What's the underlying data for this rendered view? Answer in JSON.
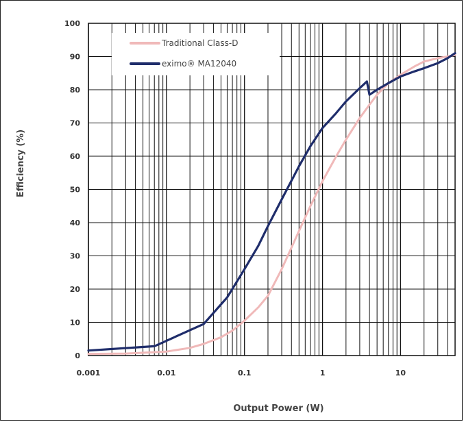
{
  "chart_data": {
    "type": "line",
    "xlabel": "Output Power (W)",
    "ylabel": "Efficiency (%)",
    "x_scale": "log",
    "xlim": [
      0.001,
      50
    ],
    "ylim": [
      0,
      100
    ],
    "x_ticks": [
      {
        "value": 0.001,
        "label": "0.001"
      },
      {
        "value": 0.01,
        "label": "0.01"
      },
      {
        "value": 0.1,
        "label": "0.1"
      },
      {
        "value": 1,
        "label": "1"
      },
      {
        "value": 10,
        "label": "10"
      }
    ],
    "y_ticks": [
      {
        "value": 0,
        "label": "0"
      },
      {
        "value": 10,
        "label": "10"
      },
      {
        "value": 20,
        "label": "20"
      },
      {
        "value": 30,
        "label": "30"
      },
      {
        "value": 40,
        "label": "40"
      },
      {
        "value": 50,
        "label": "50"
      },
      {
        "value": 60,
        "label": "60"
      },
      {
        "value": 70,
        "label": "70"
      },
      {
        "value": 80,
        "label": "80"
      },
      {
        "value": 90,
        "label": "90"
      },
      {
        "value": 100,
        "label": "100"
      }
    ],
    "grid": true,
    "legend_position": "top-left",
    "series": [
      {
        "name": "Traditional Class-D",
        "color": "#f0b9b9",
        "x": [
          0.001,
          0.003,
          0.01,
          0.02,
          0.03,
          0.05,
          0.07,
          0.1,
          0.15,
          0.2,
          0.3,
          0.5,
          0.7,
          1,
          1.5,
          2,
          3,
          4,
          5,
          7,
          10,
          15,
          20,
          30,
          40,
          50
        ],
        "y": [
          0.5,
          0.6,
          1.2,
          2.3,
          3.5,
          5.5,
          7.5,
          10.5,
          14.5,
          18,
          26,
          37.5,
          45,
          52.5,
          60,
          65,
          71.5,
          75.5,
          78.5,
          82,
          84.5,
          87,
          88.5,
          89.5,
          90,
          90.5
        ]
      },
      {
        "name": "eximo® MA12040",
        "color": "#1f2d6b",
        "x": [
          0.001,
          0.007,
          0.03,
          0.06,
          0.1,
          0.15,
          0.2,
          0.3,
          0.5,
          0.7,
          1,
          1.5,
          2,
          3,
          3.7,
          4.0,
          5,
          7,
          10,
          15,
          20,
          30,
          40,
          50
        ],
        "y": [
          1.5,
          2.8,
          9.5,
          17.5,
          26,
          33,
          39,
          47,
          57,
          63,
          68.5,
          73,
          76.5,
          80.5,
          82.5,
          78.5,
          80,
          82,
          84,
          85.5,
          86.5,
          88,
          89.5,
          91
        ]
      }
    ]
  }
}
